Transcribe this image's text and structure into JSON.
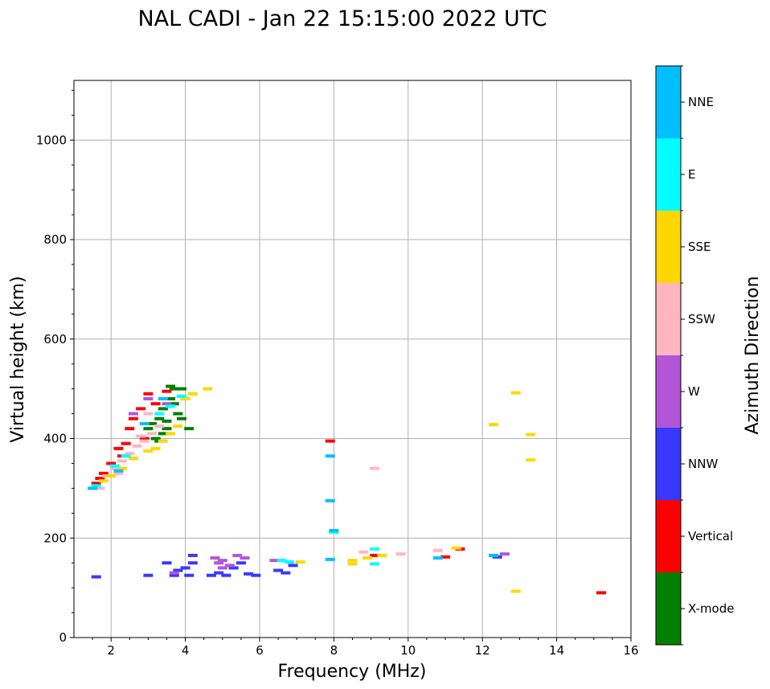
{
  "chart_data": {
    "type": "scatter",
    "title": "NAL CADI - Jan 22 15:15:00 2022 UTC",
    "xlabel": "Frequency (MHz)",
    "ylabel": "Virtual height (km)",
    "xlim": [
      1,
      16
    ],
    "ylim": [
      0,
      1120
    ],
    "xticks": [
      2,
      4,
      6,
      8,
      10,
      12,
      14,
      16
    ],
    "xtick_labels": [
      "2",
      "4",
      "6",
      "8",
      "10",
      "12",
      "14",
      "16"
    ],
    "yticks": [
      0,
      200,
      400,
      600,
      800,
      1000
    ],
    "ytick_labels": [
      "0",
      "200",
      "400",
      "600",
      "800",
      "1000"
    ],
    "grid": true,
    "colorbar": {
      "label": "Azimuth Direction",
      "categories": [
        {
          "name": "X-mode",
          "color": "#008000"
        },
        {
          "name": "Vertical",
          "color": "#ff0000"
        },
        {
          "name": "NNW",
          "color": "#3838ff"
        },
        {
          "name": "W",
          "color": "#b455d8"
        },
        {
          "name": "SSW",
          "color": "#ffb6c1"
        },
        {
          "name": "SSE",
          "color": "#ffd700"
        },
        {
          "name": "E",
          "color": "#00ffff"
        },
        {
          "name": "NNE",
          "color": "#00bfff"
        }
      ]
    },
    "series": [
      {
        "name": "X-mode",
        "points": [
          [
            3.0,
            420
          ],
          [
            3.1,
            430
          ],
          [
            3.3,
            440
          ],
          [
            3.4,
            410
          ],
          [
            3.5,
            420
          ],
          [
            3.6,
            505
          ],
          [
            3.6,
            480
          ],
          [
            3.7,
            470
          ],
          [
            3.8,
            450
          ],
          [
            3.9,
            440
          ],
          [
            3.4,
            460
          ],
          [
            3.2,
            400
          ],
          [
            3.5,
            435
          ],
          [
            3.9,
            500
          ],
          [
            4.1,
            420
          ],
          [
            4.0,
            480
          ],
          [
            3.3,
            395
          ],
          [
            3.7,
            500
          ]
        ]
      },
      {
        "name": "Vertical",
        "points": [
          [
            1.6,
            310
          ],
          [
            1.8,
            330
          ],
          [
            2.0,
            350
          ],
          [
            2.2,
            380
          ],
          [
            2.4,
            390
          ],
          [
            2.5,
            420
          ],
          [
            2.6,
            440
          ],
          [
            2.8,
            460
          ],
          [
            3.0,
            490
          ],
          [
            3.2,
            470
          ],
          [
            3.5,
            495
          ],
          [
            2.9,
            400
          ],
          [
            2.3,
            365
          ],
          [
            1.7,
            320
          ],
          [
            7.9,
            395
          ],
          [
            9.1,
            165
          ],
          [
            11.0,
            162
          ],
          [
            11.4,
            178
          ],
          [
            15.2,
            90
          ]
        ]
      },
      {
        "name": "NNW",
        "points": [
          [
            1.6,
            122
          ],
          [
            3.0,
            125
          ],
          [
            3.7,
            125
          ],
          [
            3.8,
            135
          ],
          [
            4.0,
            140
          ],
          [
            4.1,
            125
          ],
          [
            4.2,
            150
          ],
          [
            4.2,
            165
          ],
          [
            4.9,
            130
          ],
          [
            5.1,
            125
          ],
          [
            5.3,
            140
          ],
          [
            5.5,
            150
          ],
          [
            5.7,
            128
          ],
          [
            6.5,
            135
          ],
          [
            6.7,
            130
          ],
          [
            6.9,
            145
          ],
          [
            3.5,
            150
          ],
          [
            4.7,
            125
          ],
          [
            5.9,
            125
          ],
          [
            12.4,
            162
          ]
        ]
      },
      {
        "name": "W",
        "points": [
          [
            3.7,
            130
          ],
          [
            4.8,
            160
          ],
          [
            5.0,
            155
          ],
          [
            5.2,
            145
          ],
          [
            5.4,
            165
          ],
          [
            5.6,
            160
          ],
          [
            5.0,
            140
          ],
          [
            4.9,
            150
          ],
          [
            6.4,
            155
          ],
          [
            12.6,
            168
          ],
          [
            3.0,
            480
          ],
          [
            2.6,
            450
          ],
          [
            3.5,
            470
          ]
        ]
      },
      {
        "name": "SSW",
        "points": [
          [
            1.7,
            300
          ],
          [
            1.9,
            325
          ],
          [
            2.1,
            340
          ],
          [
            2.3,
            355
          ],
          [
            2.5,
            370
          ],
          [
            2.7,
            385
          ],
          [
            2.9,
            395
          ],
          [
            3.1,
            410
          ],
          [
            3.3,
            425
          ],
          [
            2.2,
            330
          ],
          [
            2.6,
            360
          ],
          [
            2.8,
            405
          ],
          [
            3.0,
            450
          ],
          [
            9.1,
            340
          ],
          [
            9.8,
            168
          ],
          [
            10.8,
            175
          ],
          [
            8.8,
            172
          ]
        ]
      },
      {
        "name": "SSE",
        "points": [
          [
            1.8,
            315
          ],
          [
            2.0,
            325
          ],
          [
            2.3,
            340
          ],
          [
            2.6,
            360
          ],
          [
            3.0,
            375
          ],
          [
            3.2,
            380
          ],
          [
            3.4,
            395
          ],
          [
            3.6,
            410
          ],
          [
            3.8,
            425
          ],
          [
            4.0,
            480
          ],
          [
            4.2,
            490
          ],
          [
            4.6,
            500
          ],
          [
            7.1,
            152
          ],
          [
            8.5,
            155
          ],
          [
            8.5,
            148
          ],
          [
            8.9,
            160
          ],
          [
            9.3,
            165
          ],
          [
            11.3,
            180
          ],
          [
            12.3,
            428
          ],
          [
            12.9,
            492
          ],
          [
            13.3,
            408
          ],
          [
            13.3,
            357
          ],
          [
            12.9,
            93
          ]
        ]
      },
      {
        "name": "E",
        "points": [
          [
            1.6,
            305
          ],
          [
            2.1,
            345
          ],
          [
            2.4,
            365
          ],
          [
            3.3,
            450
          ],
          [
            3.6,
            465
          ],
          [
            3.9,
            485
          ],
          [
            6.6,
            155
          ],
          [
            6.8,
            152
          ],
          [
            9.1,
            178
          ],
          [
            9.1,
            148
          ],
          [
            12.3,
            165
          ],
          [
            8.0,
            212
          ]
        ]
      },
      {
        "name": "NNE",
        "points": [
          [
            1.5,
            300
          ],
          [
            2.2,
            335
          ],
          [
            2.9,
            430
          ],
          [
            3.4,
            480
          ],
          [
            7.9,
            365
          ],
          [
            7.9,
            275
          ],
          [
            8.0,
            215
          ],
          [
            7.9,
            157
          ],
          [
            10.8,
            160
          ],
          [
            12.3,
            165
          ]
        ]
      }
    ]
  }
}
